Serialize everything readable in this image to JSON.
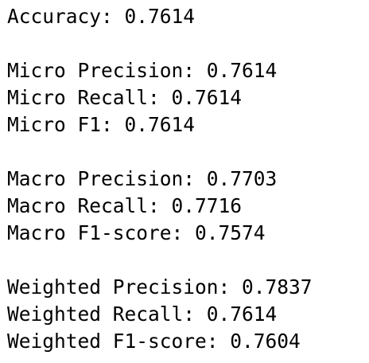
{
  "output": {
    "accuracy": "Accuracy: 0.7614",
    "micro": {
      "precision": "Micro Precision: 0.7614",
      "recall": "Micro Recall: 0.7614",
      "f1": "Micro F1: 0.7614"
    },
    "macro": {
      "precision": "Macro Precision: 0.7703",
      "recall": "Macro Recall: 0.7716",
      "f1": "Macro F1-score: 0.7574"
    },
    "weighted": {
      "precision": "Weighted Precision: 0.7837",
      "recall": "Weighted Recall: 0.7614",
      "f1": "Weighted F1-score: 0.7604"
    }
  }
}
